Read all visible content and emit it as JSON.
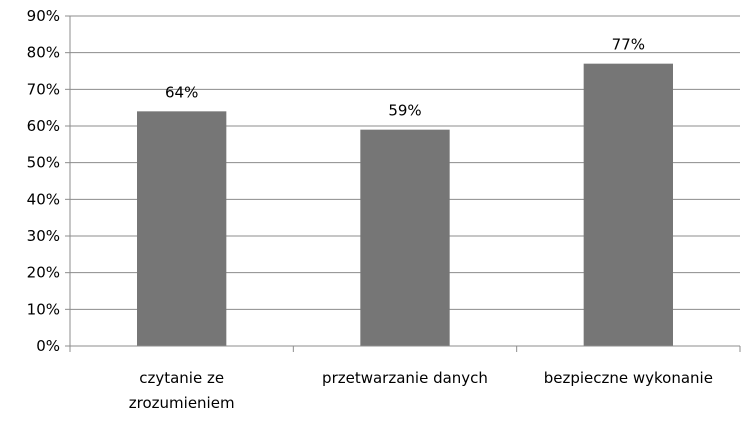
{
  "chart_data": {
    "type": "bar",
    "categories": [
      "czytanie ze zrozumieniem",
      "przetwarzanie danych",
      "bezpieczne wykonanie"
    ],
    "category_lines": [
      [
        "czytanie ze",
        "zrozumieniem"
      ],
      [
        "przetwarzanie danych"
      ],
      [
        "bezpieczne wykonanie"
      ]
    ],
    "values": [
      64,
      59,
      77
    ],
    "data_labels": [
      "64%",
      "59%",
      "77%"
    ],
    "ylim": [
      0,
      90
    ],
    "y_ticks": [
      "0%",
      "10%",
      "20%",
      "30%",
      "40%",
      "50%",
      "60%",
      "70%",
      "80%",
      "90%"
    ],
    "grid": true,
    "legend": false,
    "colors": {
      "bar": "#767676",
      "grid": "#8c8c8c",
      "axis": "#8c8c8c"
    }
  }
}
